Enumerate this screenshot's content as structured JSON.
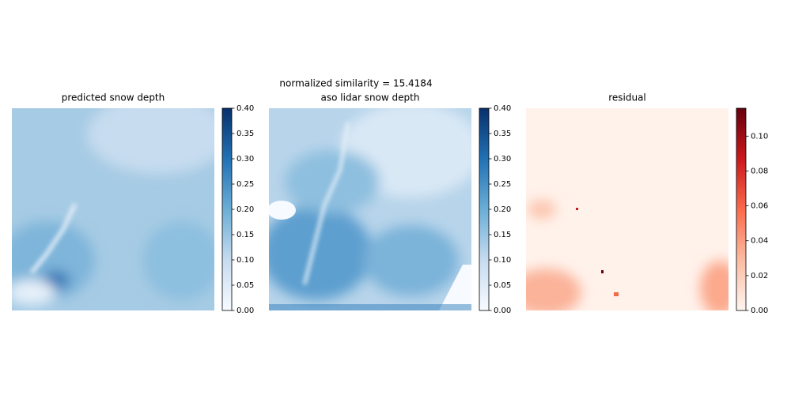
{
  "title": "normalized similarity = 15.4184",
  "chart_data": [
    {
      "type": "image",
      "title": "predicted snow depth",
      "colors": [
        "#f7fbff",
        "#c6dbef",
        "#6baed6",
        "#2171b5",
        "#08306b"
      ],
      "clim": [
        0,
        0.4
      ],
      "cticks": [
        {
          "value": 0,
          "label": "0.00"
        },
        {
          "value": 0.05,
          "label": "0.05"
        },
        {
          "value": 0.1,
          "label": "0.10"
        },
        {
          "value": 0.15,
          "label": "0.15"
        },
        {
          "value": 0.2,
          "label": "0.20"
        },
        {
          "value": 0.25,
          "label": "0.25"
        },
        {
          "value": 0.3,
          "label": "0.30"
        },
        {
          "value": 0.35,
          "label": "0.35"
        },
        {
          "value": 0.4,
          "label": "0.40"
        }
      ]
    },
    {
      "type": "image",
      "title": "aso lidar snow depth",
      "colors": [
        "#f7fbff",
        "#c6dbef",
        "#6baed6",
        "#2171b5",
        "#08306b"
      ],
      "clim": [
        0,
        0.4
      ],
      "cticks": [
        {
          "value": 0,
          "label": "0.00"
        },
        {
          "value": 0.05,
          "label": "0.05"
        },
        {
          "value": 0.1,
          "label": "0.10"
        },
        {
          "value": 0.15,
          "label": "0.15"
        },
        {
          "value": 0.2,
          "label": "0.20"
        },
        {
          "value": 0.25,
          "label": "0.25"
        },
        {
          "value": 0.3,
          "label": "0.30"
        },
        {
          "value": 0.35,
          "label": "0.35"
        },
        {
          "value": 0.4,
          "label": "0.40"
        }
      ]
    },
    {
      "type": "image",
      "title": "residual",
      "colors": [
        "#fff5f0",
        "#fcbba1",
        "#fb6a4a",
        "#cb181d",
        "#67000d"
      ],
      "clim": [
        0,
        0.116
      ],
      "cticks": [
        {
          "value": 0,
          "label": "0.00"
        },
        {
          "value": 0.02,
          "label": "0.02"
        },
        {
          "value": 0.04,
          "label": "0.04"
        },
        {
          "value": 0.06,
          "label": "0.06"
        },
        {
          "value": 0.08,
          "label": "0.08"
        },
        {
          "value": 0.1,
          "label": "0.10"
        }
      ]
    }
  ]
}
